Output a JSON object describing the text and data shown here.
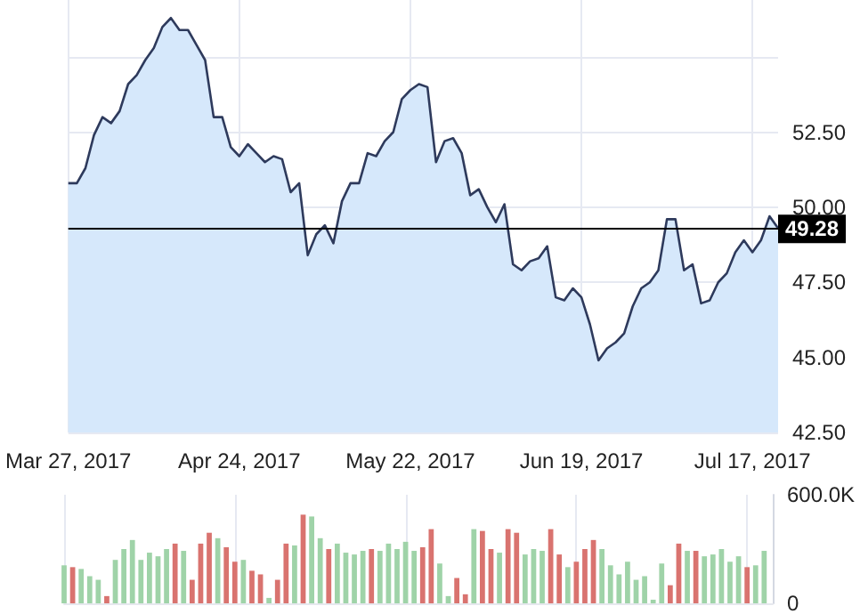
{
  "chart_data": [
    {
      "type": "area",
      "categories": [
        "Mar 27, 2017",
        null,
        null,
        null,
        null,
        null,
        null,
        null,
        null,
        null,
        null,
        null,
        null,
        null,
        null,
        null,
        null,
        null,
        null,
        null,
        "Apr 24, 2017",
        null,
        null,
        null,
        null,
        null,
        null,
        null,
        null,
        null,
        null,
        null,
        null,
        null,
        null,
        null,
        null,
        null,
        null,
        null,
        "May 22, 2017",
        null,
        null,
        null,
        null,
        null,
        null,
        null,
        null,
        null,
        null,
        null,
        null,
        null,
        null,
        null,
        null,
        null,
        null,
        null,
        "Jun 19, 2017",
        null,
        null,
        null,
        null,
        null,
        null,
        null,
        null,
        null,
        null,
        null,
        null,
        null,
        null,
        null,
        null,
        null,
        null,
        null,
        "Jul 17, 2017",
        null,
        null,
        null
      ],
      "series": [
        {
          "color": "#2e3a5c",
          "values": [
            50.8,
            50.8,
            51.3,
            52.4,
            53.0,
            52.8,
            53.2,
            54.1,
            54.4,
            54.9,
            55.3,
            56.0,
            56.3,
            55.9,
            55.9,
            55.4,
            54.9,
            53.0,
            53.0,
            52.0,
            51.7,
            52.1,
            51.8,
            51.5,
            51.7,
            51.6,
            50.5,
            50.8,
            48.4,
            49.1,
            49.4,
            48.8,
            50.2,
            50.8,
            50.8,
            51.8,
            51.7,
            52.2,
            52.5,
            53.6,
            53.9,
            54.1,
            54.0,
            51.5,
            52.2,
            52.3,
            51.8,
            50.4,
            50.6,
            50.0,
            49.5,
            50.1,
            48.1,
            47.9,
            48.2,
            48.3,
            48.7,
            47.0,
            46.9,
            47.3,
            47.0,
            46.1,
            44.9,
            45.3,
            45.5,
            45.8,
            46.7,
            47.3,
            47.5,
            47.9,
            49.6,
            49.6,
            47.9,
            48.1,
            46.8,
            46.9,
            47.5,
            47.8,
            48.5,
            48.9,
            48.5,
            48.9,
            49.7,
            49.3
          ]
        }
      ],
      "ylim": [
        42.5,
        56.9
      ],
      "yticks": [
        {
          "value": 42.5,
          "label": "42.50"
        },
        {
          "value": 45,
          "label": "45.00"
        },
        {
          "value": 47.5,
          "label": "47.50"
        },
        {
          "value": 50,
          "label": "50.00"
        },
        {
          "value": 52.5,
          "label": "52.50"
        },
        {
          "value": 55,
          "label": null
        }
      ],
      "ref_lines": [
        {
          "axis": "y",
          "value": 49.28,
          "label": "49.28",
          "color": "#000000"
        }
      ],
      "grid": true,
      "marker": "none"
    },
    {
      "type": "bar",
      "categories": [
        null,
        null,
        null,
        null,
        null,
        null,
        null,
        null,
        null,
        null,
        null,
        null,
        null,
        null,
        null,
        null,
        null,
        null,
        null,
        null,
        null,
        null,
        null,
        null,
        null,
        null,
        null,
        null,
        null,
        null,
        null,
        null,
        null,
        null,
        null,
        null,
        null,
        null,
        null,
        null,
        null,
        null,
        null,
        null,
        null,
        null,
        null,
        null,
        null,
        null,
        null,
        null,
        null,
        null,
        null,
        null,
        null,
        null,
        null,
        null,
        null,
        null,
        null,
        null,
        null,
        null,
        null,
        null,
        null,
        null,
        null,
        null,
        null,
        null,
        null,
        null,
        null,
        null,
        null,
        null,
        null,
        null,
        null,
        null
      ],
      "values": [
        210000,
        200000,
        190000,
        150000,
        130000,
        40000,
        240000,
        300000,
        350000,
        240000,
        280000,
        260000,
        300000,
        330000,
        290000,
        130000,
        330000,
        390000,
        360000,
        310000,
        230000,
        240000,
        180000,
        160000,
        30000,
        130000,
        330000,
        320000,
        490000,
        480000,
        360000,
        300000,
        330000,
        280000,
        270000,
        290000,
        300000,
        290000,
        330000,
        300000,
        340000,
        290000,
        310000,
        410000,
        220000,
        40000,
        140000,
        50000,
        410000,
        400000,
        300000,
        280000,
        410000,
        390000,
        270000,
        300000,
        290000,
        410000,
        270000,
        200000,
        230000,
        300000,
        350000,
        300000,
        210000,
        160000,
        230000,
        130000,
        150000,
        20000,
        220000,
        100000,
        330000,
        290000,
        290000,
        260000,
        270000,
        300000,
        230000,
        260000,
        200000,
        210000,
        290000,
        null
      ],
      "colors": [
        "#9fd3a8",
        "#d9736f",
        "#9fd3a8",
        "#9fd3a8",
        "#9fd3a8",
        "#d9736f",
        "#9fd3a8",
        "#9fd3a8",
        "#9fd3a8",
        "#9fd3a8",
        "#9fd3a8",
        "#9fd3a8",
        "#9fd3a8",
        "#d9736f",
        "#9fd3a8",
        "#d9736f",
        "#d9736f",
        "#d9736f",
        "#9fd3a8",
        "#d9736f",
        "#d9736f",
        "#9fd3a8",
        "#d9736f",
        "#d9736f",
        "#9fd3a8",
        "#d9736f",
        "#d9736f",
        "#9fd3a8",
        "#d9736f",
        "#9fd3a8",
        "#9fd3a8",
        "#d9736f",
        "#9fd3a8",
        "#9fd3a8",
        "#9fd3a8",
        "#9fd3a8",
        "#d9736f",
        "#9fd3a8",
        "#9fd3a8",
        "#9fd3a8",
        "#9fd3a8",
        "#9fd3a8",
        "#d9736f",
        "#d9736f",
        "#9fd3a8",
        "#9fd3a8",
        "#d9736f",
        "#d9736f",
        "#9fd3a8",
        "#d9736f",
        "#d9736f",
        "#9fd3a8",
        "#d9736f",
        "#d9736f",
        "#9fd3a8",
        "#9fd3a8",
        "#9fd3a8",
        "#d9736f",
        "#d9736f",
        "#9fd3a8",
        "#d9736f",
        "#d9736f",
        "#d9736f",
        "#9fd3a8",
        "#9fd3a8",
        "#9fd3a8",
        "#9fd3a8",
        "#9fd3a8",
        "#9fd3a8",
        "#9fd3a8",
        "#9fd3a8",
        "#d9736f",
        "#d9736f",
        "#9fd3a8",
        "#d9736f",
        "#9fd3a8",
        "#9fd3a8",
        "#9fd3a8",
        "#9fd3a8",
        "#9fd3a8",
        "#d9736f",
        "#9fd3a8",
        "#9fd3a8",
        "#9fd3a8"
      ],
      "ylim": [
        0,
        600000
      ],
      "yticks": [
        0,
        {
          "value": 600000,
          "label": "600.0K"
        }
      ],
      "grid": "x",
      "tick_labels": "y"
    }
  ]
}
